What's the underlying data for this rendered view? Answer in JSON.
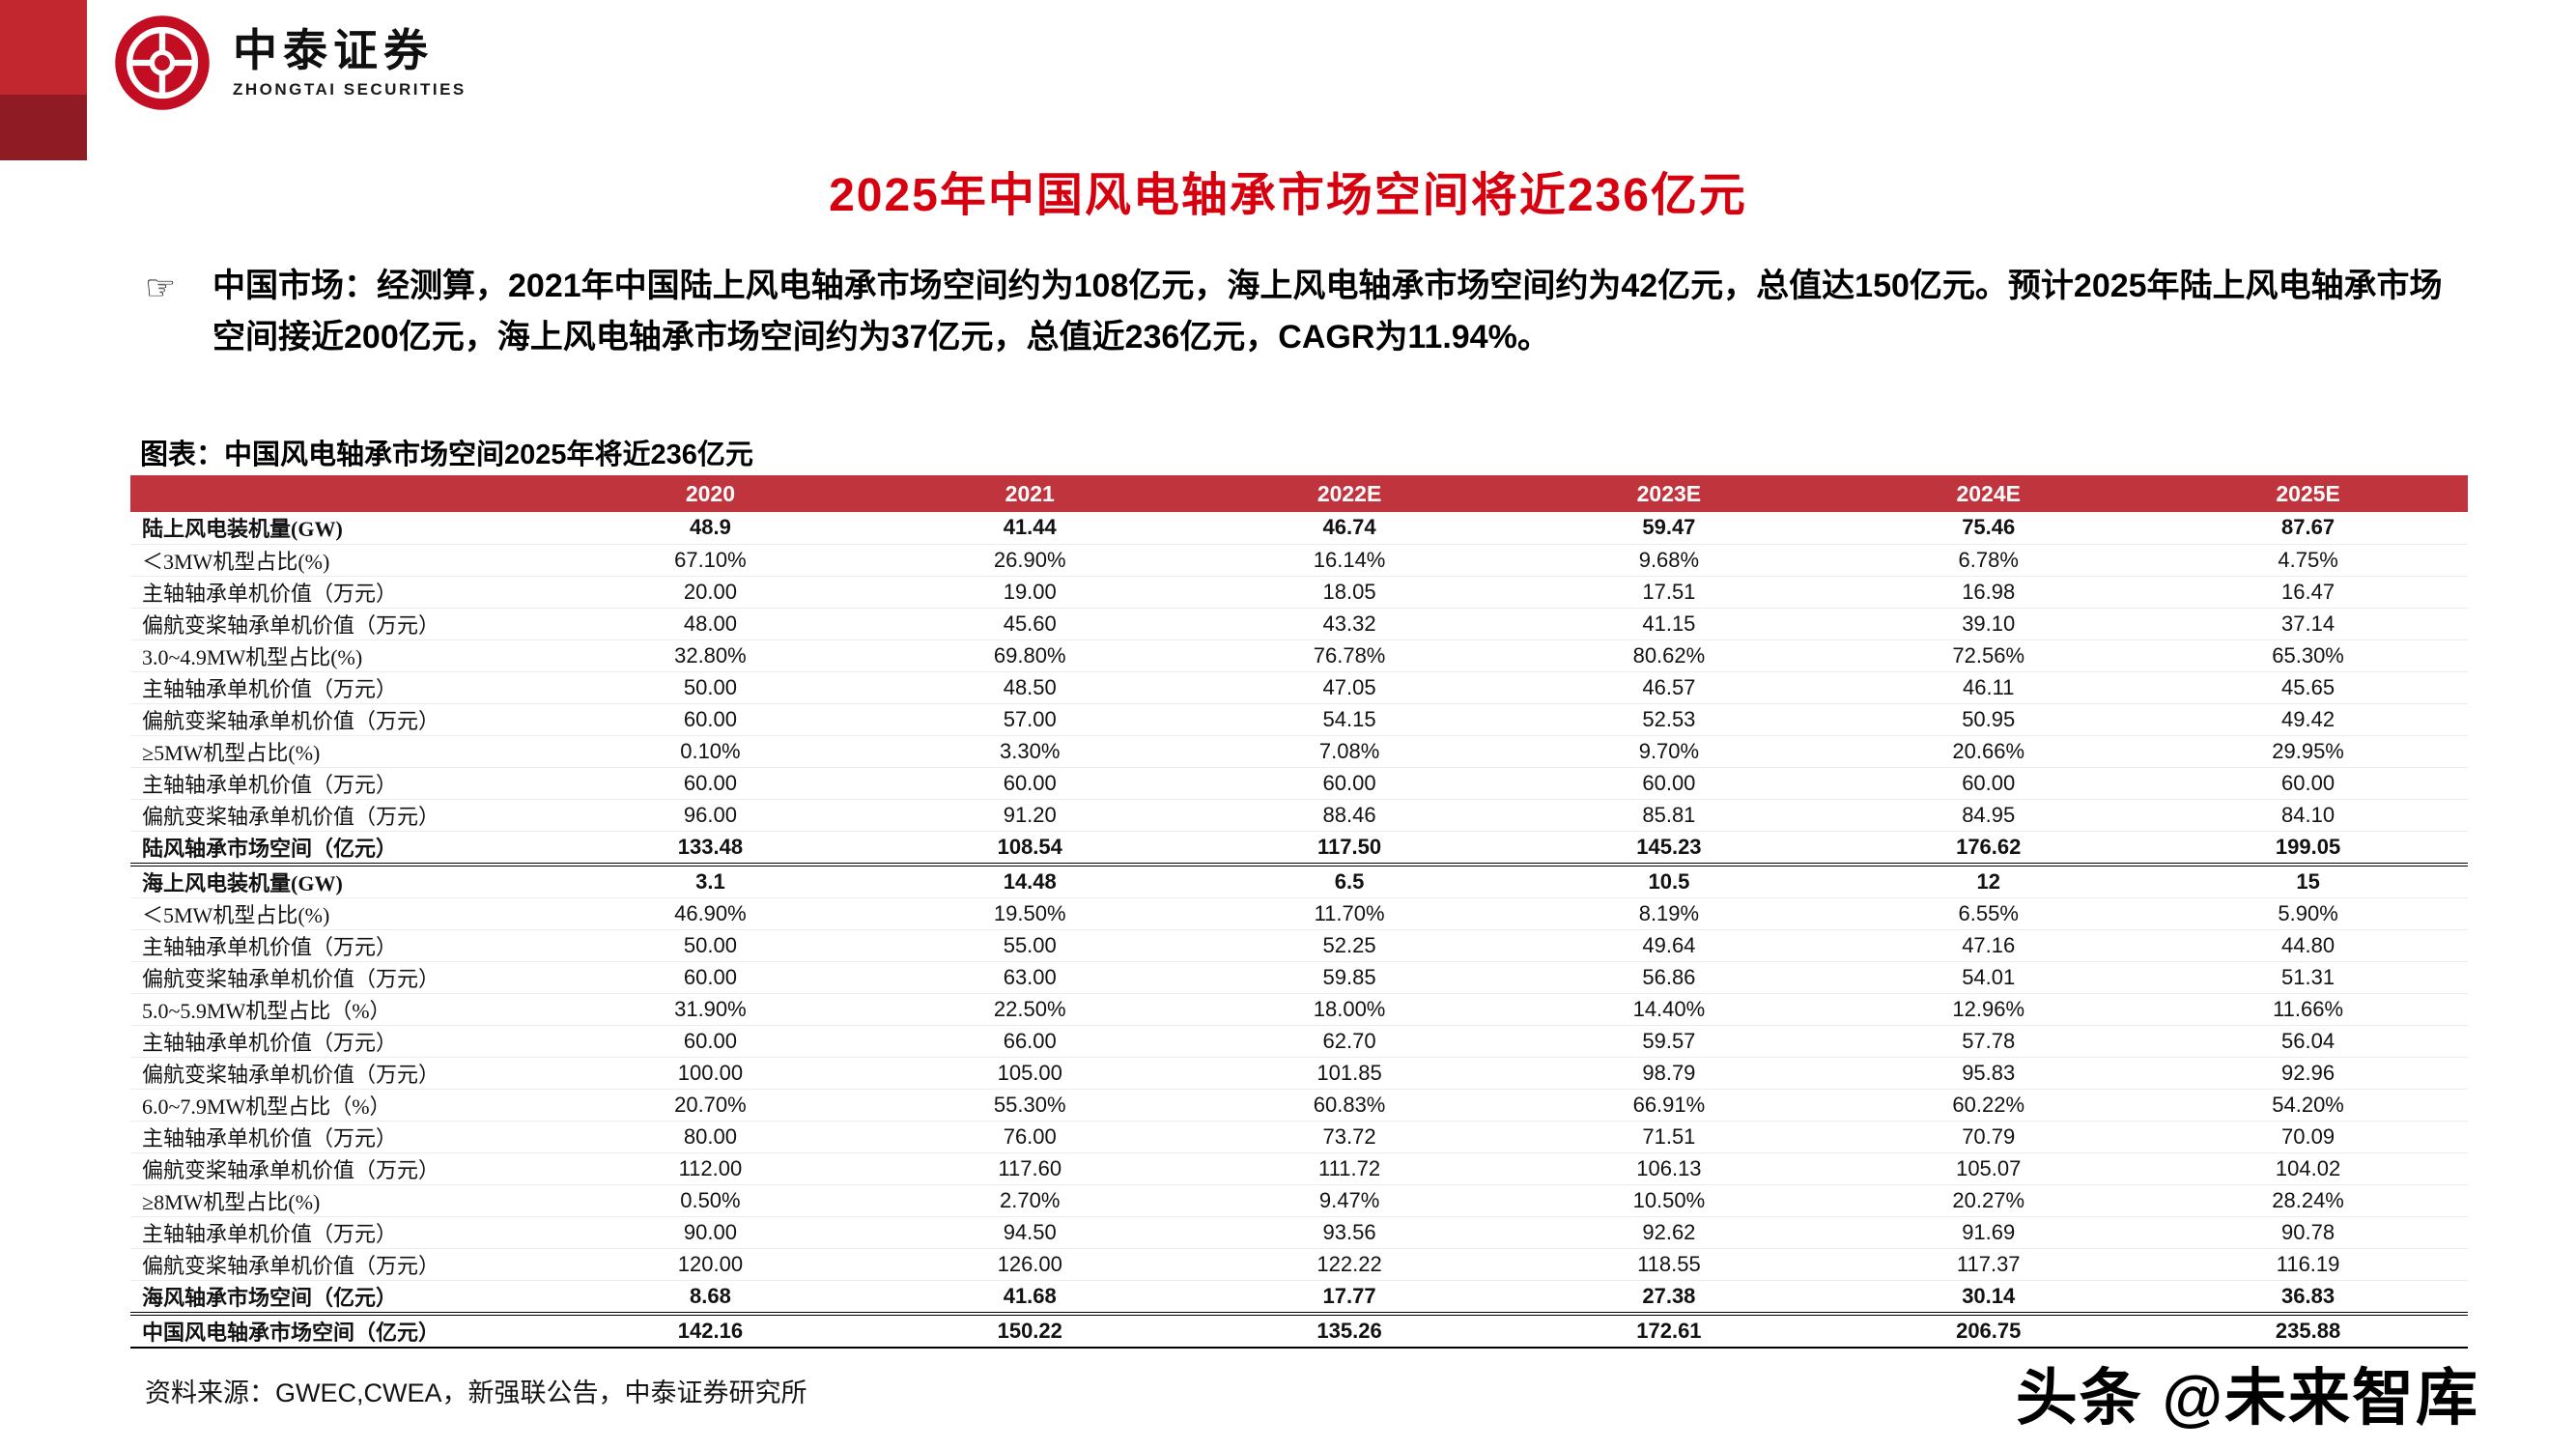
{
  "brand": {
    "name_cn": "中泰证券",
    "name_en": "ZHONGTAI SECURITIES"
  },
  "title": "2025年中国风电轴承市场空间将近236亿元",
  "summary": {
    "bullet": "☞",
    "label": "中国市场：",
    "text": "经测算，2021年中国陆上风电轴承市场空间约为108亿元，海上风电轴承市场空间约为42亿元，总值达150亿元。预计2025年陆上风电轴承市场空间接近200亿元，海上风电轴承市场空间约为37亿元，总值近236亿元，CAGR为11.94%。"
  },
  "chart_caption": "图表：中国风电轴承市场空间2025年将近236亿元",
  "table": {
    "columns": [
      "",
      "2020",
      "2021",
      "2022E",
      "2023E",
      "2024E",
      "2025E"
    ],
    "rows": [
      {
        "label": "陆上风电装机量(GW)",
        "style": "section-head",
        "values": [
          "48.9",
          "41.44",
          "46.74",
          "59.47",
          "75.46",
          "87.67"
        ]
      },
      {
        "label": "＜3MW机型占比(%)",
        "style": "",
        "values": [
          "67.10%",
          "26.90%",
          "16.14%",
          "9.68%",
          "6.78%",
          "4.75%"
        ]
      },
      {
        "label": "主轴轴承单机价值（万元）",
        "style": "",
        "values": [
          "20.00",
          "19.00",
          "18.05",
          "17.51",
          "16.98",
          "16.47"
        ]
      },
      {
        "label": "偏航变桨轴承单机价值（万元）",
        "style": "",
        "values": [
          "48.00",
          "45.60",
          "43.32",
          "41.15",
          "39.10",
          "37.14"
        ]
      },
      {
        "label": "3.0~4.9MW机型占比(%)",
        "style": "",
        "values": [
          "32.80%",
          "69.80%",
          "76.78%",
          "80.62%",
          "72.56%",
          "65.30%"
        ]
      },
      {
        "label": "主轴轴承单机价值（万元）",
        "style": "",
        "values": [
          "50.00",
          "48.50",
          "47.05",
          "46.57",
          "46.11",
          "45.65"
        ]
      },
      {
        "label": "偏航变桨轴承单机价值（万元）",
        "style": "",
        "values": [
          "60.00",
          "57.00",
          "54.15",
          "52.53",
          "50.95",
          "49.42"
        ]
      },
      {
        "label": "≥5MW机型占比(%)",
        "style": "",
        "values": [
          "0.10%",
          "3.30%",
          "7.08%",
          "9.70%",
          "20.66%",
          "29.95%"
        ]
      },
      {
        "label": "主轴轴承单机价值（万元）",
        "style": "",
        "values": [
          "60.00",
          "60.00",
          "60.00",
          "60.00",
          "60.00",
          "60.00"
        ]
      },
      {
        "label": "偏航变桨轴承单机价值（万元）",
        "style": "",
        "values": [
          "96.00",
          "91.20",
          "88.46",
          "85.81",
          "84.95",
          "84.10"
        ]
      },
      {
        "label": "陆风轴承市场空间（亿元）",
        "style": "subtotal",
        "values": [
          "133.48",
          "108.54",
          "117.50",
          "145.23",
          "176.62",
          "199.05"
        ]
      },
      {
        "label": "海上风电装机量(GW)",
        "style": "section-head",
        "values": [
          "3.1",
          "14.48",
          "6.5",
          "10.5",
          "12",
          "15"
        ]
      },
      {
        "label": "＜5MW机型占比(%)",
        "style": "",
        "values": [
          "46.90%",
          "19.50%",
          "11.70%",
          "8.19%",
          "6.55%",
          "5.90%"
        ]
      },
      {
        "label": "主轴轴承单机价值（万元）",
        "style": "",
        "values": [
          "50.00",
          "55.00",
          "52.25",
          "49.64",
          "47.16",
          "44.80"
        ]
      },
      {
        "label": "偏航变桨轴承单机价值（万元）",
        "style": "",
        "values": [
          "60.00",
          "63.00",
          "59.85",
          "56.86",
          "54.01",
          "51.31"
        ]
      },
      {
        "label": "5.0~5.9MW机型占比（%）",
        "style": "",
        "values": [
          "31.90%",
          "22.50%",
          "18.00%",
          "14.40%",
          "12.96%",
          "11.66%"
        ]
      },
      {
        "label": "主轴轴承单机价值（万元）",
        "style": "",
        "values": [
          "60.00",
          "66.00",
          "62.70",
          "59.57",
          "57.78",
          "56.04"
        ]
      },
      {
        "label": "偏航变桨轴承单机价值（万元）",
        "style": "",
        "values": [
          "100.00",
          "105.00",
          "101.85",
          "98.79",
          "95.83",
          "92.96"
        ]
      },
      {
        "label": "6.0~7.9MW机型占比（%）",
        "style": "",
        "values": [
          "20.70%",
          "55.30%",
          "60.83%",
          "66.91%",
          "60.22%",
          "54.20%"
        ]
      },
      {
        "label": "主轴轴承单机价值（万元）",
        "style": "",
        "values": [
          "80.00",
          "76.00",
          "73.72",
          "71.51",
          "70.79",
          "70.09"
        ]
      },
      {
        "label": "偏航变桨轴承单机价值（万元）",
        "style": "",
        "values": [
          "112.00",
          "117.60",
          "111.72",
          "106.13",
          "105.07",
          "104.02"
        ]
      },
      {
        "label": "≥8MW机型占比(%)",
        "style": "",
        "values": [
          "0.50%",
          "2.70%",
          "9.47%",
          "10.50%",
          "20.27%",
          "28.24%"
        ]
      },
      {
        "label": "主轴轴承单机价值（万元）",
        "style": "",
        "values": [
          "90.00",
          "94.50",
          "93.56",
          "92.62",
          "91.69",
          "90.78"
        ]
      },
      {
        "label": "偏航变桨轴承单机价值（万元）",
        "style": "",
        "values": [
          "120.00",
          "126.00",
          "122.22",
          "118.55",
          "117.37",
          "116.19"
        ]
      },
      {
        "label": "海风轴承市场空间（亿元）",
        "style": "subtotal",
        "values": [
          "8.68",
          "41.68",
          "17.77",
          "27.38",
          "30.14",
          "36.83"
        ]
      },
      {
        "label": "中国风电轴承市场空间（亿元）",
        "style": "total",
        "values": [
          "142.16",
          "150.22",
          "135.26",
          "172.61",
          "206.75",
          "235.88"
        ]
      }
    ]
  },
  "source": "资料来源：GWEC,CWEA，新强联公告，中泰证券研究所",
  "watermark": "头条 @未来智库",
  "colors": {
    "header_bg": "#C0343E",
    "title_red": "#D7000F",
    "brand_red": "#C30D23",
    "corner_top_red": "#C2262E",
    "corner_bottom_red": "#8F1B24"
  }
}
